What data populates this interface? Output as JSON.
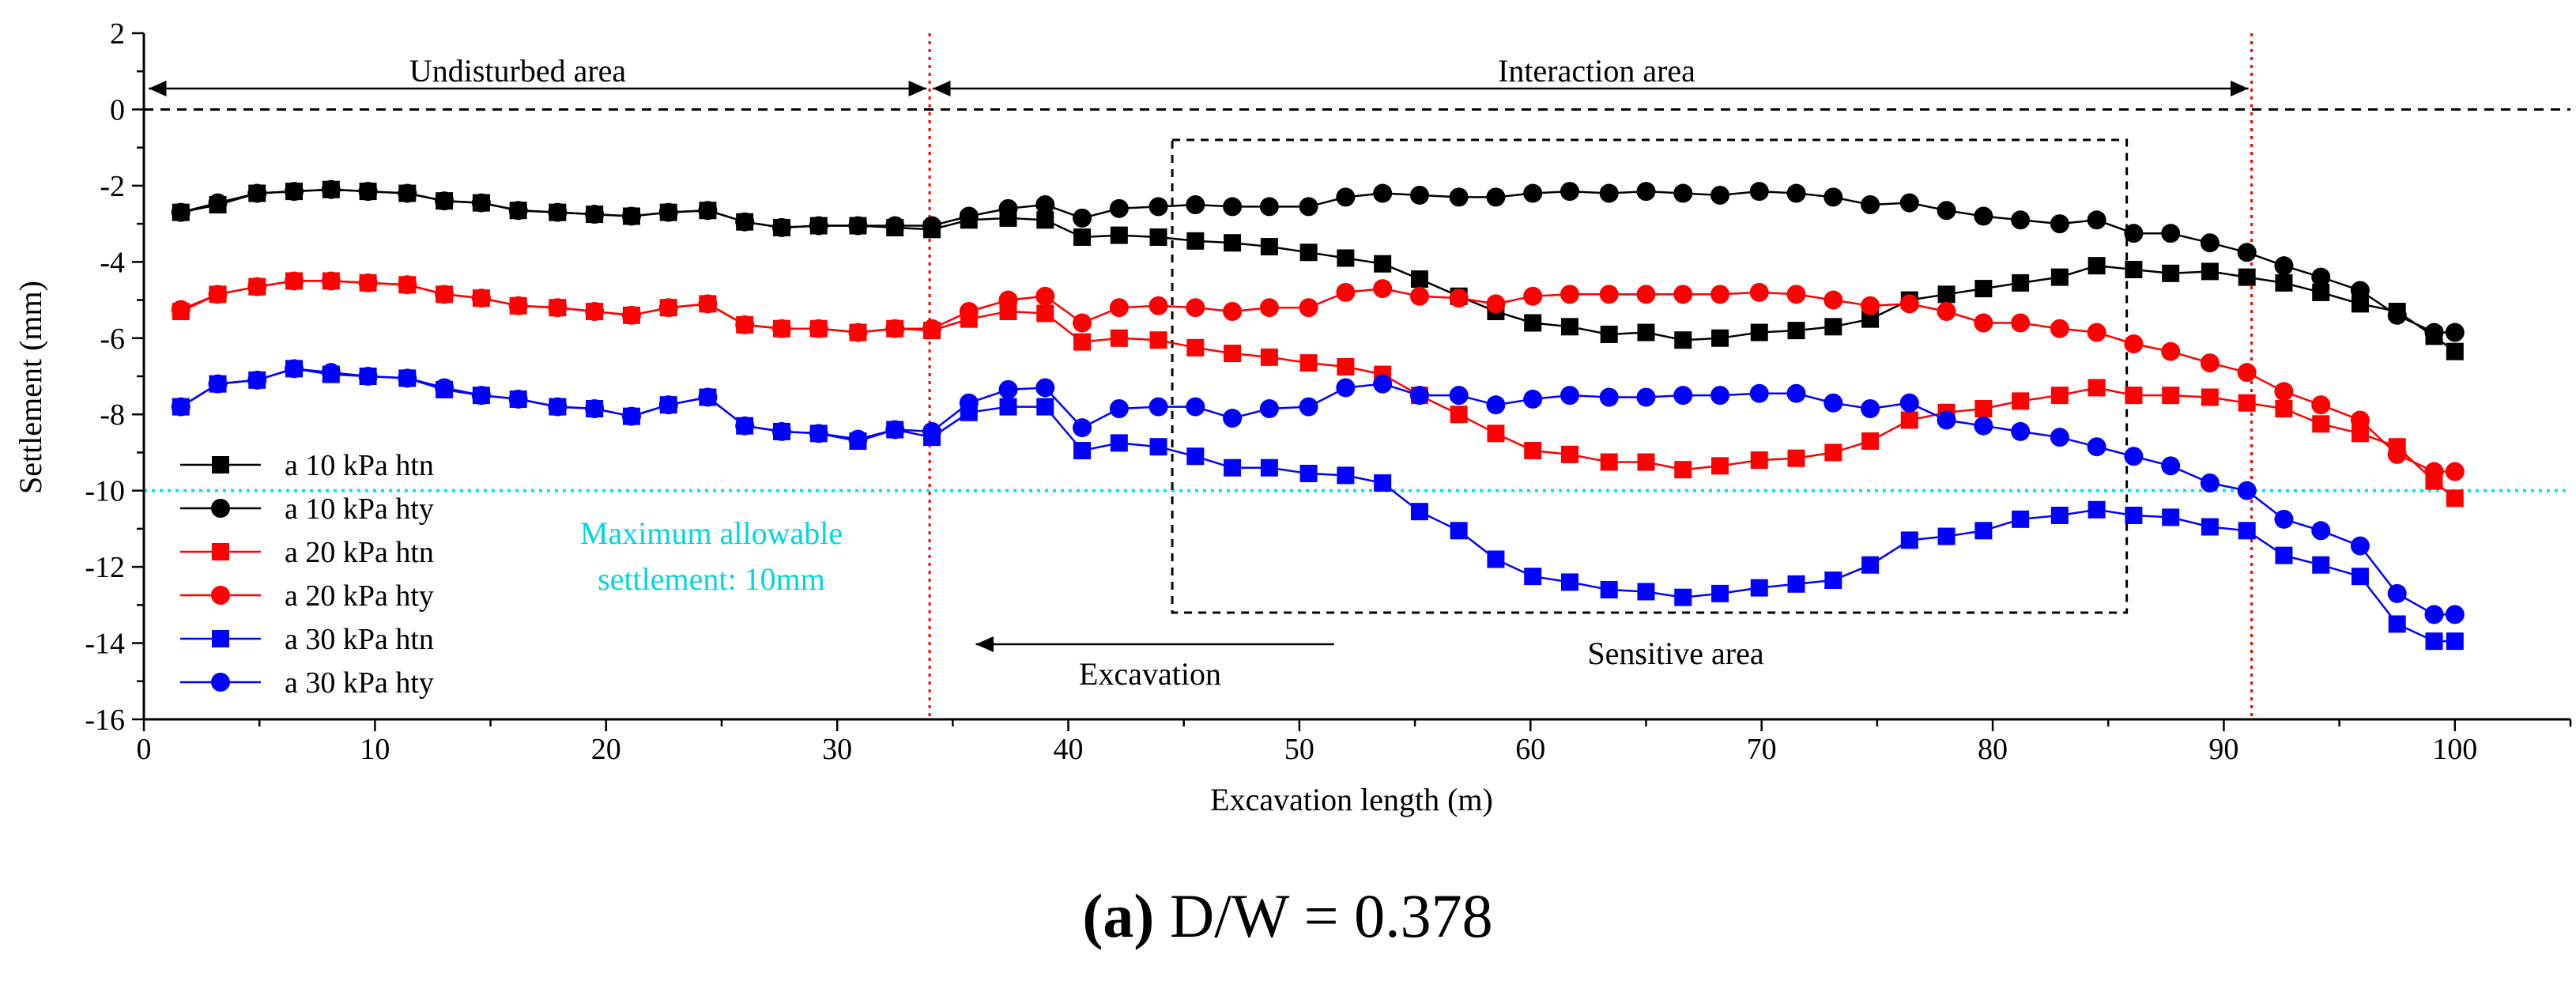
{
  "chart_data": {
    "type": "line",
    "xlabel": "Excavation length (m)",
    "ylabel": "Settlement (mm)",
    "xlim": [
      0,
      105
    ],
    "ylim": [
      -16,
      2
    ],
    "xticks": [
      0,
      10,
      20,
      30,
      40,
      50,
      60,
      70,
      80,
      90,
      100
    ],
    "yticks": [
      2,
      0,
      -2,
      -4,
      -6,
      -8,
      -10,
      -12,
      -14,
      -16
    ],
    "x": [
      1.6,
      3.2,
      4.9,
      6.5,
      8.1,
      9.7,
      11.4,
      13,
      14.6,
      16.2,
      17.9,
      19.5,
      21.1,
      22.7,
      24.4,
      26,
      27.6,
      29.2,
      30.9,
      32.5,
      34.1,
      35.7,
      37.4,
      39,
      40.6,
      42.2,
      43.9,
      45.5,
      47.1,
      48.7,
      50.4,
      52,
      53.6,
      55.2,
      56.9,
      58.5,
      60.1,
      61.7,
      63.4,
      65,
      66.6,
      68.2,
      69.9,
      71.5,
      73.1,
      74.7,
      76.4,
      78,
      79.6,
      81.2,
      82.9,
      84.5,
      86.1,
      87.7,
      89.4,
      91,
      92.6,
      94.2,
      95.9,
      97.5,
      99.1,
      100
    ],
    "series": [
      {
        "name": "a 10 kPa htn",
        "color": "#000000",
        "marker": "square",
        "values": [
          -2.7,
          -2.5,
          -2.2,
          -2.15,
          -2.1,
          -2.15,
          -2.2,
          -2.4,
          -2.45,
          -2.65,
          -2.7,
          -2.75,
          -2.8,
          -2.7,
          -2.65,
          -2.95,
          -3.1,
          -3.05,
          -3.05,
          -3.1,
          -3.15,
          -2.9,
          -2.85,
          -2.9,
          -3.35,
          -3.3,
          -3.35,
          -3.45,
          -3.5,
          -3.6,
          -3.75,
          -3.9,
          -4.05,
          -4.45,
          -4.9,
          -5.3,
          -5.6,
          -5.7,
          -5.9,
          -5.85,
          -6.05,
          -6.0,
          -5.85,
          -5.8,
          -5.7,
          -5.5,
          -5.0,
          -4.85,
          -4.7,
          -4.55,
          -4.4,
          -4.1,
          -4.2,
          -4.3,
          -4.25,
          -4.4,
          -4.55,
          -4.8,
          -5.1,
          -5.3,
          -5.95,
          -6.35
        ]
      },
      {
        "name": "a 10 kPa hty",
        "color": "#000000",
        "marker": "circle",
        "values": [
          -2.7,
          -2.45,
          -2.2,
          -2.15,
          -2.1,
          -2.15,
          -2.2,
          -2.4,
          -2.45,
          -2.65,
          -2.7,
          -2.75,
          -2.8,
          -2.7,
          -2.65,
          -2.95,
          -3.1,
          -3.05,
          -3.05,
          -3.05,
          -3.05,
          -2.8,
          -2.6,
          -2.5,
          -2.85,
          -2.6,
          -2.55,
          -2.5,
          -2.55,
          -2.55,
          -2.55,
          -2.3,
          -2.2,
          -2.25,
          -2.3,
          -2.3,
          -2.2,
          -2.15,
          -2.2,
          -2.15,
          -2.2,
          -2.25,
          -2.15,
          -2.2,
          -2.3,
          -2.5,
          -2.45,
          -2.65,
          -2.8,
          -2.9,
          -3.0,
          -2.9,
          -3.25,
          -3.25,
          -3.5,
          -3.75,
          -4.1,
          -4.4,
          -4.75,
          -5.4,
          -5.85,
          -5.85
        ]
      },
      {
        "name": "a 20 kPa htn",
        "color": "#ff0000",
        "marker": "square",
        "values": [
          -5.3,
          -4.85,
          -4.65,
          -4.5,
          -4.5,
          -4.55,
          -4.6,
          -4.85,
          -4.95,
          -5.15,
          -5.2,
          -5.3,
          -5.4,
          -5.2,
          -5.1,
          -5.65,
          -5.75,
          -5.75,
          -5.85,
          -5.75,
          -5.8,
          -5.5,
          -5.3,
          -5.35,
          -6.1,
          -6.0,
          -6.05,
          -6.25,
          -6.4,
          -6.5,
          -6.65,
          -6.75,
          -6.95,
          -7.5,
          -8.0,
          -8.5,
          -8.95,
          -9.05,
          -9.25,
          -9.25,
          -9.45,
          -9.35,
          -9.2,
          -9.15,
          -9.0,
          -8.7,
          -8.15,
          -7.95,
          -7.85,
          -7.65,
          -7.5,
          -7.3,
          -7.5,
          -7.5,
          -7.55,
          -7.7,
          -7.85,
          -8.25,
          -8.5,
          -8.85,
          -9.75,
          -10.2
        ]
      },
      {
        "name": "a 20 kPa hty",
        "color": "#ff0000",
        "marker": "circle",
        "values": [
          -5.25,
          -4.85,
          -4.65,
          -4.5,
          -4.5,
          -4.55,
          -4.6,
          -4.85,
          -4.95,
          -5.15,
          -5.2,
          -5.3,
          -5.4,
          -5.2,
          -5.1,
          -5.65,
          -5.75,
          -5.75,
          -5.85,
          -5.75,
          -5.75,
          -5.3,
          -5.0,
          -4.9,
          -5.6,
          -5.2,
          -5.15,
          -5.2,
          -5.3,
          -5.2,
          -5.2,
          -4.8,
          -4.7,
          -4.9,
          -4.95,
          -5.1,
          -4.9,
          -4.85,
          -4.85,
          -4.85,
          -4.85,
          -4.85,
          -4.8,
          -4.85,
          -5.0,
          -5.15,
          -5.1,
          -5.3,
          -5.6,
          -5.6,
          -5.75,
          -5.85,
          -6.15,
          -6.35,
          -6.65,
          -6.9,
          -7.4,
          -7.75,
          -8.15,
          -9.05,
          -9.5,
          -9.5
        ]
      },
      {
        "name": "a 30 kPa htn",
        "color": "#0000ff",
        "marker": "square",
        "values": [
          -7.8,
          -7.2,
          -7.1,
          -6.8,
          -6.95,
          -7.0,
          -7.05,
          -7.35,
          -7.5,
          -7.6,
          -7.8,
          -7.85,
          -8.05,
          -7.75,
          -7.55,
          -8.3,
          -8.45,
          -8.5,
          -8.7,
          -8.4,
          -8.6,
          -7.95,
          -7.8,
          -7.8,
          -8.95,
          -8.75,
          -8.85,
          -9.1,
          -9.4,
          -9.4,
          -9.55,
          -9.6,
          -9.8,
          -10.55,
          -11.05,
          -11.8,
          -12.25,
          -12.4,
          -12.6,
          -12.65,
          -12.8,
          -12.7,
          -12.55,
          -12.45,
          -12.35,
          -11.95,
          -11.3,
          -11.2,
          -11.05,
          -10.75,
          -10.65,
          -10.5,
          -10.65,
          -10.7,
          -10.95,
          -11.05,
          -11.7,
          -11.95,
          -12.25,
          -13.5,
          -13.95,
          -13.95
        ]
      },
      {
        "name": "a 30 kPa hty",
        "color": "#0000ff",
        "marker": "circle",
        "values": [
          -7.8,
          -7.2,
          -7.1,
          -6.8,
          -6.9,
          -7.0,
          -7.05,
          -7.3,
          -7.5,
          -7.6,
          -7.8,
          -7.85,
          -8.05,
          -7.75,
          -7.55,
          -8.3,
          -8.45,
          -8.5,
          -8.65,
          -8.4,
          -8.45,
          -7.7,
          -7.35,
          -7.3,
          -8.35,
          -7.85,
          -7.8,
          -7.8,
          -8.1,
          -7.85,
          -7.8,
          -7.3,
          -7.2,
          -7.5,
          -7.5,
          -7.75,
          -7.6,
          -7.5,
          -7.55,
          -7.55,
          -7.5,
          -7.5,
          -7.45,
          -7.45,
          -7.7,
          -7.85,
          -7.7,
          -8.15,
          -8.3,
          -8.45,
          -8.6,
          -8.85,
          -9.1,
          -9.35,
          -9.8,
          -10.0,
          -10.75,
          -11.05,
          -11.45,
          -12.7,
          -13.25,
          -13.25
        ]
      }
    ],
    "reference_lines": {
      "zero_line": 0,
      "max_allowable": -10,
      "vertical_boundaries": [
        34,
        91.2
      ]
    },
    "sensitive_area_box": {
      "x_range": [
        44.5,
        85.8
      ],
      "y_range": [
        -13.2,
        -0.8
      ]
    },
    "annotations": {
      "undisturbed": "Undisturbed area",
      "interaction": "Interaction area",
      "max_allowable_line1": "Maximum allowable",
      "max_allowable_line2": "settlement: 10mm",
      "excavation": "Excavation",
      "sensitive": "Sensitive area"
    },
    "legend_position": "left",
    "caption": {
      "letter": "(a)",
      "rest": " D/W = 0.378"
    }
  }
}
